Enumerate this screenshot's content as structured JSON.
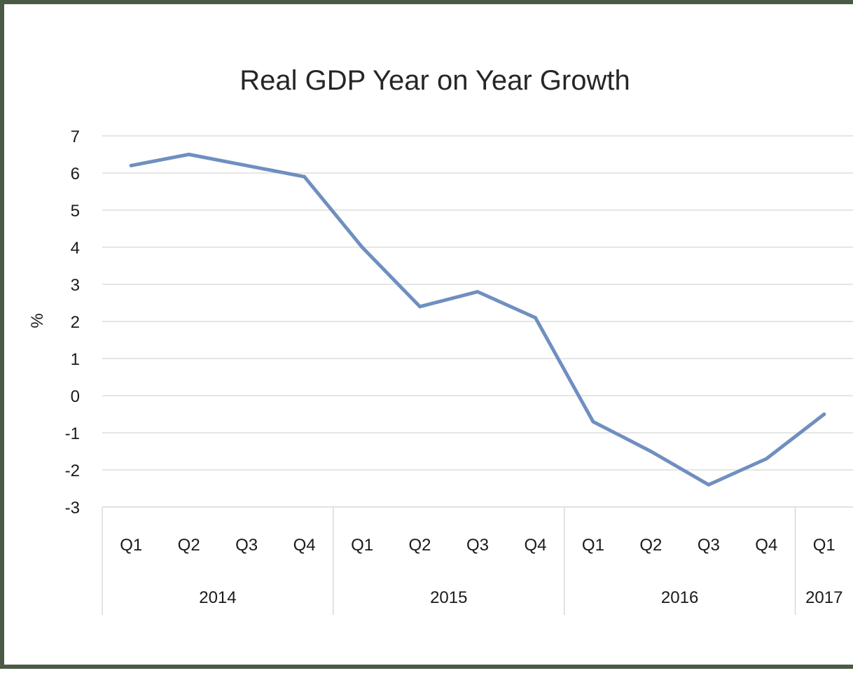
{
  "chart_data": {
    "type": "line",
    "title": "Real GDP Year on Year Growth",
    "xlabel": "",
    "ylabel": "%",
    "ylim": [
      -3,
      7
    ],
    "yticks": [
      "7",
      "6",
      "5",
      "4",
      "3",
      "2",
      "1",
      "0",
      "-1",
      "-2",
      "-3"
    ],
    "categories": [
      "Q1",
      "Q2",
      "Q3",
      "Q4",
      "Q1",
      "Q2",
      "Q3",
      "Q4",
      "Q1",
      "Q2",
      "Q3",
      "Q4",
      "Q1"
    ],
    "years": [
      {
        "label": "2014",
        "quarters": 4
      },
      {
        "label": "2015",
        "quarters": 4
      },
      {
        "label": "2016",
        "quarters": 4
      },
      {
        "label": "2017",
        "quarters": 1
      }
    ],
    "series": [
      {
        "values": [
          6.2,
          6.5,
          6.2,
          5.9,
          4.0,
          2.4,
          2.8,
          2.1,
          -0.7,
          -1.5,
          -2.4,
          -1.7,
          -0.5
        ]
      }
    ],
    "grid": true,
    "legend": "none",
    "colors": {
      "line": "#6f8fc0",
      "grid": "#dedede",
      "frame": "#4a5a47"
    }
  }
}
